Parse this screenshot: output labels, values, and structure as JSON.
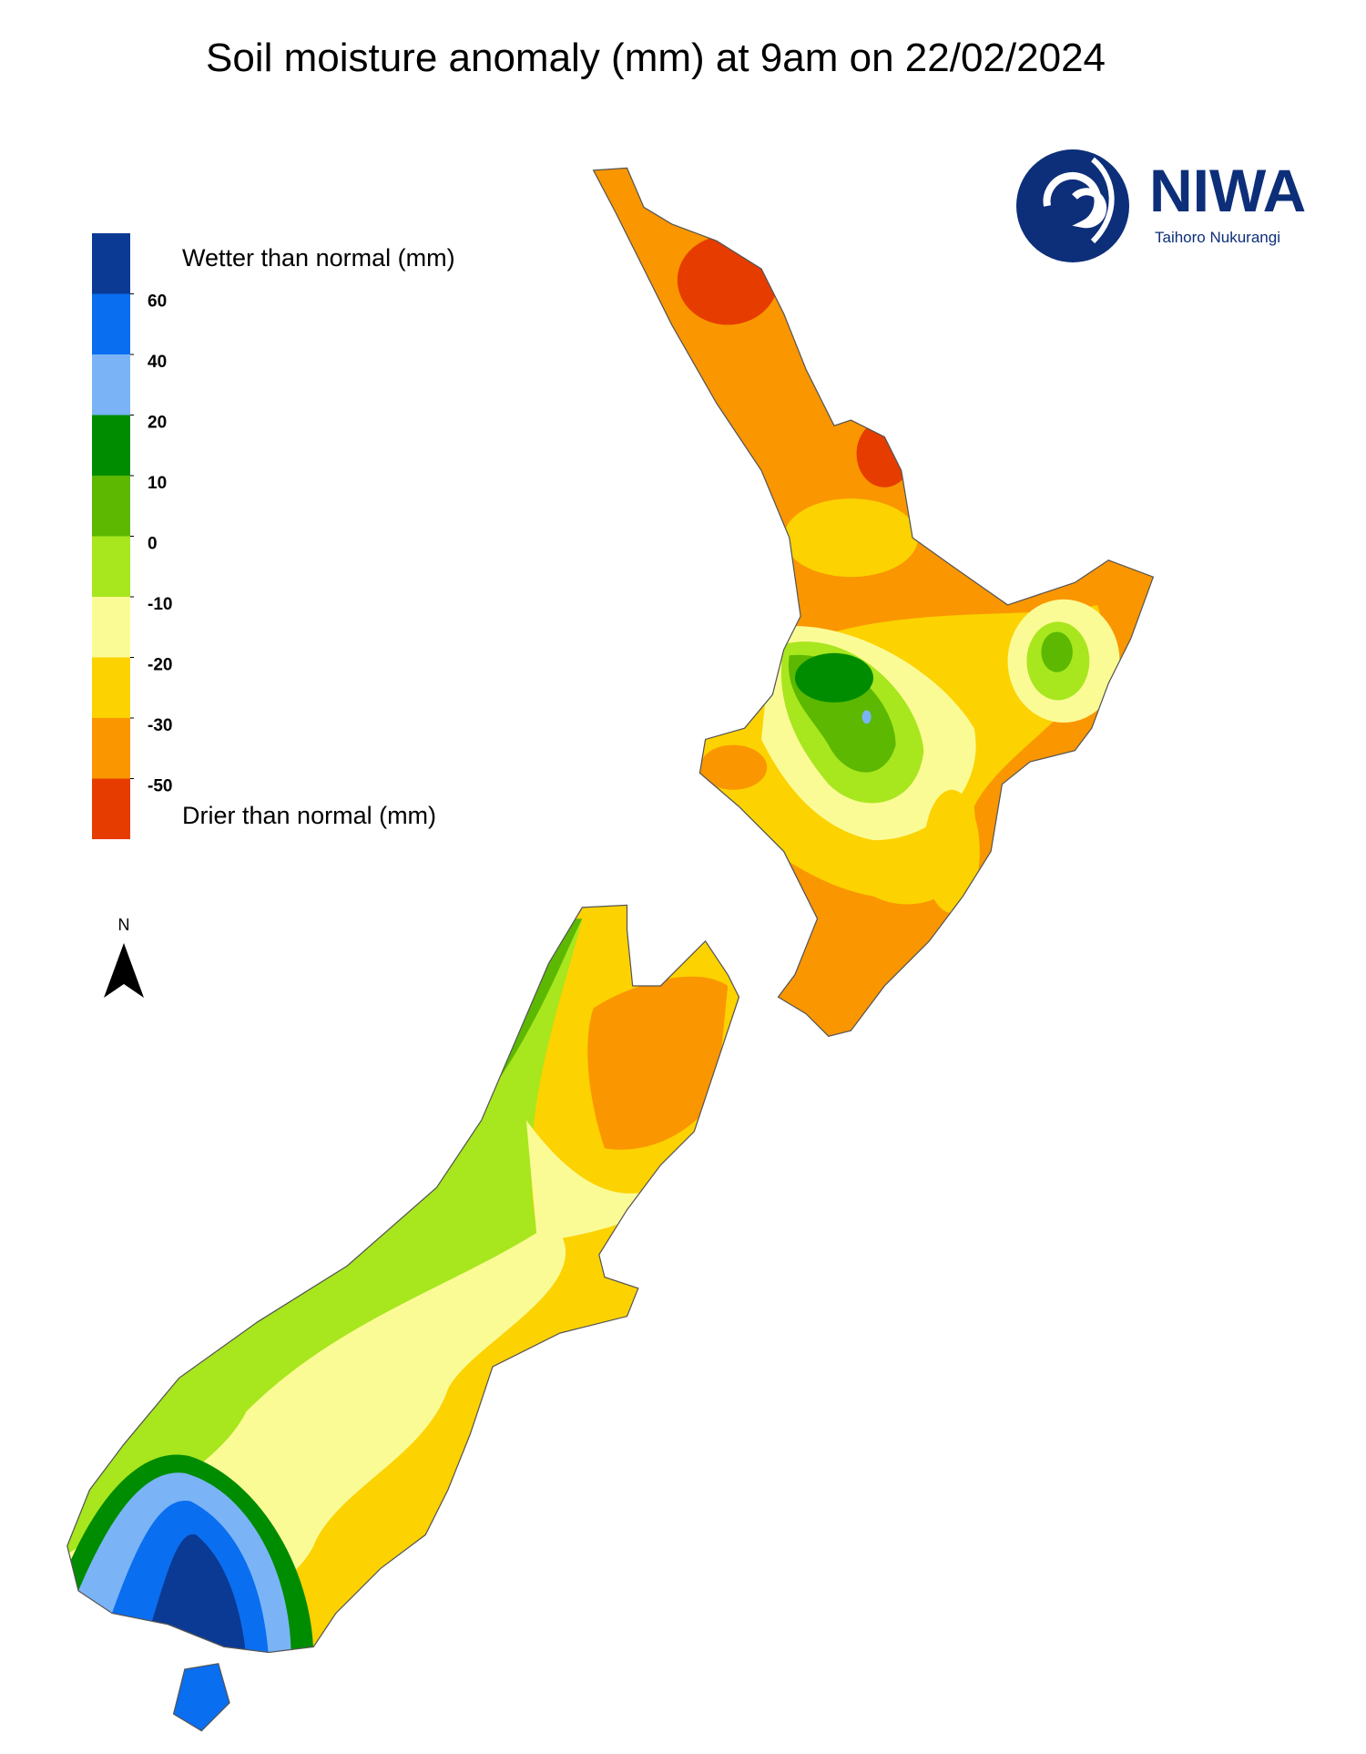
{
  "title": "Soil moisture anomaly (mm) at 9am on 22/02/2024",
  "legend": {
    "colors": [
      "#0a3a94",
      "#0a6ef0",
      "#7ab4f7",
      "#008c00",
      "#5cb800",
      "#a8e61e",
      "#fbfb96",
      "#fcd200",
      "#fa9600",
      "#e63c00"
    ],
    "ticks": [
      60,
      40,
      20,
      10,
      0,
      -10,
      -20,
      -30,
      -50
    ],
    "wetter_label": "Wetter than normal (mm)",
    "drier_label": "Drier than normal (mm)"
  },
  "north_label": "N",
  "logo": {
    "name": "NIWA",
    "subtitle": "Taihoro Nukurangi"
  }
}
